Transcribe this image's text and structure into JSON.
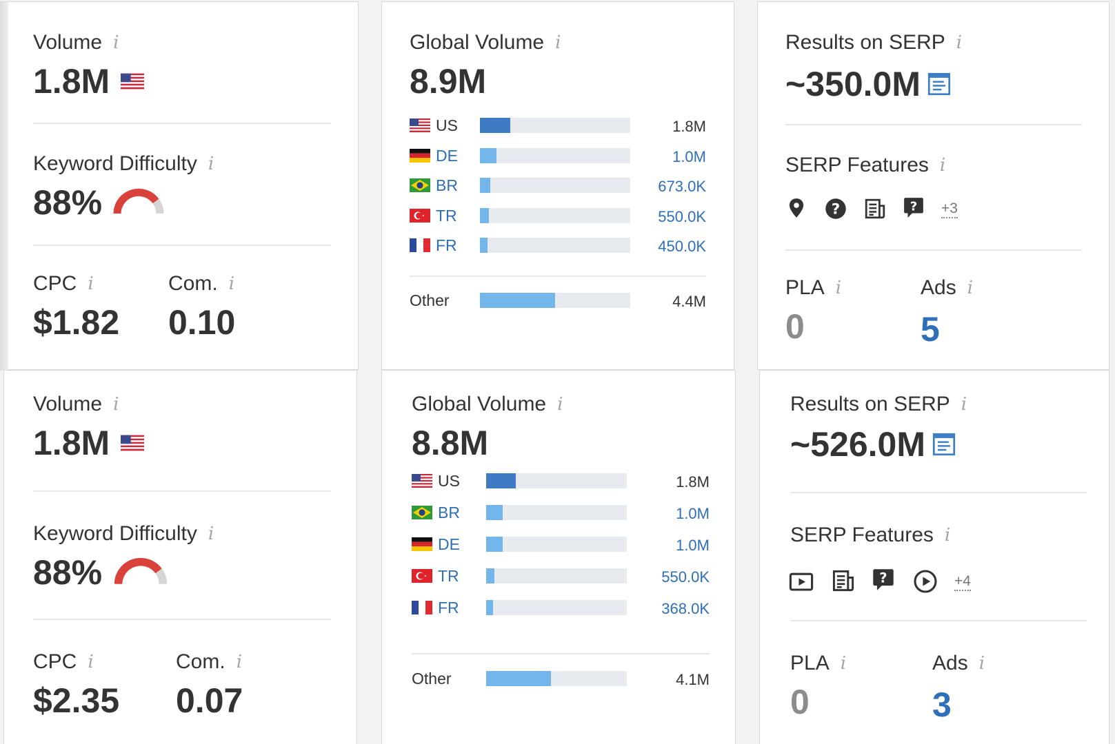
{
  "labels": {
    "volume": "Volume",
    "kd": "Keyword Difficulty",
    "cpc": "CPC",
    "com": "Com.",
    "global_volume": "Global Volume",
    "results_serp": "Results on SERP",
    "serp_features": "SERP Features",
    "pla": "PLA",
    "ads": "Ads",
    "other": "Other",
    "info_glyph": "i"
  },
  "colors": {
    "bar_dark": "#3f7bc4",
    "bar_light": "#73b6ec",
    "gauge_red": "#d9423a",
    "gauge_gray": "#d5d5d5",
    "link_blue": "#2e6fb7"
  },
  "top": {
    "volume": "1.8M",
    "kd": "88%",
    "kd_level": 0.88,
    "cpc": "$1.82",
    "com": "0.10",
    "global_volume": "8.9M",
    "countries": [
      {
        "code": "US",
        "value": "1.8M",
        "share": 0.2
      },
      {
        "code": "DE",
        "value": "1.0M",
        "share": 0.11
      },
      {
        "code": "BR",
        "value": "673.0K",
        "share": 0.07
      },
      {
        "code": "TR",
        "value": "550.0K",
        "share": 0.06
      },
      {
        "code": "FR",
        "value": "450.0K",
        "share": 0.05
      }
    ],
    "other_value": "4.4M",
    "other_share": 0.5,
    "results": "~350.0M",
    "features": [
      "map-pin-icon",
      "faq-icon",
      "news-icon",
      "people-also-ask-icon"
    ],
    "features_more": "+3",
    "pla": "0",
    "ads": "5"
  },
  "bottom": {
    "volume": "1.8M",
    "kd": "88%",
    "kd_level": 0.88,
    "cpc": "$2.35",
    "com": "0.07",
    "global_volume": "8.8M",
    "countries": [
      {
        "code": "US",
        "value": "1.8M",
        "share": 0.21
      },
      {
        "code": "BR",
        "value": "1.0M",
        "share": 0.12
      },
      {
        "code": "DE",
        "value": "1.0M",
        "share": 0.12
      },
      {
        "code": "TR",
        "value": "550.0K",
        "share": 0.06
      },
      {
        "code": "FR",
        "value": "368.0K",
        "share": 0.04
      }
    ],
    "other_value": "4.1M",
    "other_share": 0.46,
    "results": "~526.0M",
    "features": [
      "video-icon",
      "news-icon",
      "people-also-ask-icon",
      "play-circle-icon"
    ],
    "features_more": "+4",
    "pla": "0",
    "ads": "3"
  }
}
